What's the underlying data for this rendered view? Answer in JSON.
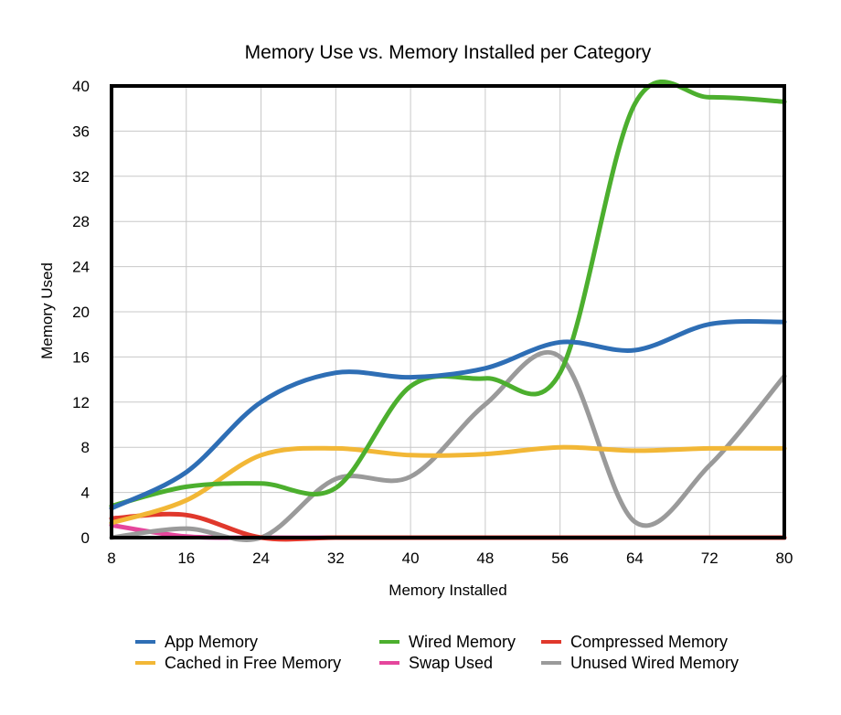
{
  "chart_data": {
    "type": "line",
    "title": "Memory Use vs. Memory Installed per Category",
    "xlabel": "Memory Installed",
    "ylabel": "Memory Used",
    "x": [
      8,
      16,
      24,
      32,
      40,
      48,
      56,
      64,
      72,
      80
    ],
    "xlim": [
      8,
      80
    ],
    "ylim": [
      0,
      40
    ],
    "x_ticks": [
      "8",
      "16",
      "24",
      "32",
      "40",
      "48",
      "56",
      "64",
      "72",
      "80"
    ],
    "y_ticks": [
      "0",
      "4",
      "8",
      "12",
      "16",
      "20",
      "24",
      "28",
      "32",
      "36",
      "40"
    ],
    "grid": true,
    "smooth": true,
    "legend_position": "bottom",
    "series": [
      {
        "name": "App Memory",
        "color": "#2e6eb5",
        "values": [
          2.6,
          5.8,
          12.0,
          14.6,
          14.2,
          15.0,
          17.3,
          16.6,
          18.9,
          19.1
        ]
      },
      {
        "name": "Cached in Free Memory",
        "color": "#f2b736",
        "values": [
          1.3,
          3.3,
          7.3,
          7.9,
          7.3,
          7.4,
          8.0,
          7.7,
          7.9,
          7.9
        ]
      },
      {
        "name": "Wired Memory",
        "color": "#4caf2e",
        "values": [
          2.8,
          4.5,
          4.8,
          4.4,
          13.4,
          14.1,
          14.6,
          38.4,
          39.0,
          38.6
        ]
      },
      {
        "name": "Swap Used",
        "color": "#e5469c",
        "values": [
          1.1,
          0.1,
          0.0,
          0.0,
          0.0,
          0.0,
          0.0,
          0.0,
          0.0,
          0.0
        ]
      },
      {
        "name": "Compressed Memory",
        "color": "#e0382c",
        "values": [
          1.7,
          2.0,
          0.0,
          0.0,
          0.0,
          0.0,
          0.0,
          0.0,
          0.0,
          0.0
        ]
      },
      {
        "name": "Unused Wired Memory",
        "color": "#9a9a9a",
        "values": [
          0.0,
          0.8,
          0.0,
          5.2,
          5.4,
          11.8,
          16.0,
          1.4,
          6.4,
          14.3
        ]
      }
    ]
  }
}
